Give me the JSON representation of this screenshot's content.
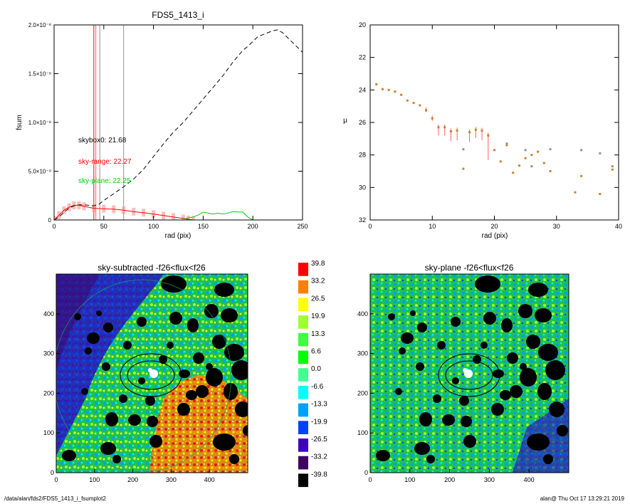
{
  "footer": {
    "path": "/data/alan/fds2/FDS5_1413_i_fsumplot2",
    "user_time": "alan@  Thu Oct 17 13:29:21 2019"
  },
  "chart_data": [
    {
      "type": "line",
      "title": "FDS5_1413_i",
      "xlabel": "rad (pix)",
      "ylabel": "fsum",
      "xlim": [
        0,
        250
      ],
      "ylim": [
        0,
        2e-08
      ],
      "xticks": [
        "0",
        "50",
        "100",
        "150",
        "200",
        "250"
      ],
      "yticks": [
        "0",
        "5.0×10⁻⁹",
        "1.0×10⁻⁸",
        "1.5×10⁻⁸",
        "2.0×10⁻⁸"
      ],
      "yticks_values": [
        0,
        5e-09,
        1e-08,
        1.5e-08,
        2e-08
      ],
      "vlines": [
        {
          "x": 40,
          "color": "#ff0000"
        },
        {
          "x": 42,
          "color": "#ff6060"
        },
        {
          "x": 46,
          "color": "#909090"
        },
        {
          "x": 70,
          "color": "#909090"
        }
      ],
      "annotations": [
        {
          "text": "skybox0: 21.68",
          "color": "#000000"
        },
        {
          "text": "sky-range: 22.27",
          "color": "#ff0000"
        },
        {
          "text": "sky-plane: 22.25",
          "color": "#00d000"
        }
      ],
      "series": [
        {
          "style": "dashed",
          "color": "#000000",
          "x": [
            0,
            5,
            10,
            15,
            20,
            25,
            30,
            35,
            40,
            45,
            50,
            60,
            70,
            80,
            90,
            100,
            110,
            120,
            130,
            140,
            150,
            160,
            170,
            180,
            190,
            195,
            200,
            205,
            210,
            215,
            220,
            225,
            230,
            240,
            250
          ],
          "y": [
            0,
            3e-10,
            8e-10,
            1.2e-09,
            1.45e-09,
            1.55e-09,
            1.55e-09,
            1.5e-09,
            1.45e-09,
            1.6e-09,
            2e-09,
            2.7e-09,
            3.4e-09,
            4.2e-09,
            5.2e-09,
            6.5e-09,
            7.8e-09,
            9e-09,
            1e-08,
            1.12e-08,
            1.24e-08,
            1.36e-08,
            1.48e-08,
            1.62e-08,
            1.74e-08,
            1.78e-08,
            1.83e-08,
            1.88e-08,
            1.9e-08,
            1.92e-08,
            1.94e-08,
            1.95e-08,
            1.92e-08,
            1.82e-08,
            1.72e-08
          ]
        },
        {
          "style": "solid",
          "color": "#ff0000",
          "x": [
            0,
            5,
            10,
            15,
            20,
            25,
            30,
            40,
            50,
            60,
            70,
            80,
            90,
            100,
            110,
            120,
            130,
            135,
            140
          ],
          "y": [
            0,
            5e-10,
            1e-09,
            1.3e-09,
            1.5e-09,
            1.5e-09,
            1.4e-09,
            1.2e-09,
            1.15e-09,
            1.1e-09,
            1e-09,
            8.5e-10,
            7.5e-10,
            6e-10,
            4.5e-10,
            3e-10,
            1.5e-10,
            5e-11,
            0
          ]
        },
        {
          "style": "solid",
          "color": "#00d000",
          "x": [
            130,
            140,
            145,
            150,
            160,
            165,
            170,
            180,
            190,
            195,
            200
          ],
          "y": [
            1e-10,
            3e-10,
            5e-10,
            8e-10,
            6e-10,
            7e-10,
            6e-10,
            8.5e-10,
            8e-10,
            3e-10,
            0
          ]
        }
      ]
    },
    {
      "type": "scatter",
      "title": "",
      "xlabel": "rad (pix)",
      "ylabel": "μ",
      "xlim": [
        0,
        40
      ],
      "ylim": [
        32,
        20
      ],
      "xticks": [
        "0",
        "10",
        "20",
        "30",
        "40"
      ],
      "yticks": [
        "20",
        "22",
        "24",
        "26",
        "28",
        "30",
        "32"
      ],
      "series": [
        {
          "color": "#d08030",
          "x": [
            1,
            2,
            3,
            4,
            5,
            6,
            7,
            8,
            9,
            10,
            11,
            12,
            13,
            14,
            15,
            16,
            17,
            18,
            19,
            20,
            21,
            22,
            23,
            24,
            25,
            26,
            27,
            28,
            29,
            30,
            31,
            32,
            33,
            34,
            35,
            36,
            37,
            38,
            39
          ],
          "y": [
            23.65,
            23.95,
            24.0,
            24.1,
            24.3,
            24.65,
            24.8,
            24.95,
            25.25,
            25.75,
            26.3,
            26.3,
            26.55,
            26.5,
            28.85,
            26.6,
            26.45,
            26.5,
            26.8,
            27.7,
            28.4,
            27.4,
            29.1,
            28.65,
            28.2,
            28.0,
            27.8,
            28.5,
            29.0,
            null,
            null,
            null,
            30.3,
            29.3,
            null,
            null,
            30.4,
            null,
            28.9
          ],
          "yerr_up": [
            0,
            0,
            0,
            0,
            0,
            0,
            0,
            0,
            0.1,
            0.15,
            0.5,
            0.5,
            0.6,
            0.6,
            0,
            0.6,
            0.5,
            0.6,
            1.5,
            0,
            0,
            0,
            0,
            0,
            0,
            0,
            0,
            0,
            0,
            0,
            0,
            0,
            0,
            0,
            0,
            0,
            0,
            0,
            0
          ]
        },
        {
          "color": "#9090a0",
          "x": [
            15,
            22,
            25,
            26,
            29,
            34,
            37,
            39
          ],
          "y": [
            27.65,
            27.3,
            27.7,
            28.7,
            27.65,
            27.7,
            27.9,
            28.7
          ]
        }
      ]
    },
    {
      "type": "heatmap",
      "title": "sky-subtracted -f26<flux<f26",
      "xticks": [
        "0",
        "100",
        "200",
        "300",
        "400"
      ],
      "yticks": [
        "0",
        "100",
        "200",
        "300",
        "400"
      ],
      "xlim": [
        0,
        500
      ],
      "ylim": [
        0,
        500
      ]
    },
    {
      "type": "heatmap",
      "title": "sky-plane -f26<flux<f26",
      "xticks": [
        "0",
        "100",
        "200",
        "300",
        "400"
      ],
      "yticks": [
        "0",
        "100",
        "200",
        "300",
        "400"
      ],
      "xlim": [
        0,
        500
      ],
      "ylim": [
        0,
        500
      ]
    },
    {
      "type": "colorbar",
      "labels": [
        "39.8",
        "33.2",
        "26.5",
        "19.9",
        "13.3",
        "6.6",
        "0.0",
        "-6.6",
        "-13.3",
        "-19.9",
        "-26.5",
        "-33.2",
        "-39.8"
      ],
      "colors": [
        "#ff0000",
        "#ff8000",
        "#ffff00",
        "#a0ff30",
        "#40ff40",
        "#00ff00",
        "#40ff90",
        "#00ffff",
        "#00a0ff",
        "#0040ff",
        "#4000c0",
        "#400060",
        "#000000"
      ]
    }
  ]
}
